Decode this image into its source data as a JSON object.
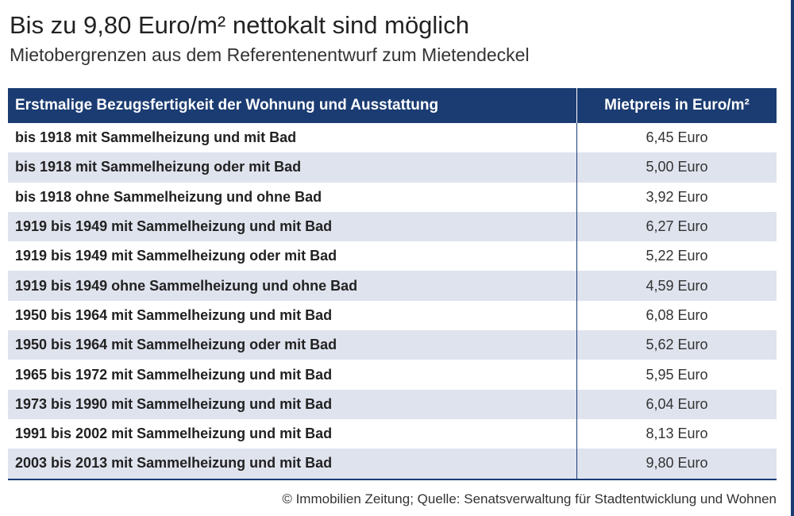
{
  "title": "Bis zu 9,80 Euro/m² nettokalt sind möglich",
  "subtitle": "Mietobergrenzen aus dem Referentenentwurf zum Mietendeckel",
  "source": "© Immobilien Zeitung; Quelle: Senatsverwaltung für Stadtentwicklung und Wohnen",
  "colors": {
    "header_bg": "#1b3c72",
    "row_alt_bg": "#dfe3ee"
  },
  "chart_data": {
    "type": "table",
    "title": "Bis zu 9,80 Euro/m² nettokalt sind möglich",
    "subtitle": "Mietobergrenzen aus dem Referentenentwurf zum Mietendeckel",
    "columns": [
      "Erstmalige Bezugsfertigkeit der Wohnung und Ausstattung",
      "Mietpreis in Euro/m²"
    ],
    "rows": [
      {
        "desc": "bis 1918 mit Sammelheizung und mit Bad",
        "price": "6,45 Euro"
      },
      {
        "desc": "bis 1918 mit Sammelheizung oder mit Bad",
        "price": "5,00 Euro"
      },
      {
        "desc": "bis 1918 ohne Sammelheizung und ohne Bad",
        "price": "3,92 Euro"
      },
      {
        "desc": "1919 bis 1949 mit Sammelheizung und mit Bad",
        "price": "6,27 Euro"
      },
      {
        "desc": "1919 bis 1949 mit Sammelheizung oder mit Bad",
        "price": "5,22 Euro"
      },
      {
        "desc": "1919 bis 1949 ohne Sammelheizung und ohne Bad",
        "price": "4,59 Euro"
      },
      {
        "desc": "1950 bis 1964 mit Sammelheizung und mit Bad",
        "price": "6,08 Euro"
      },
      {
        "desc": "1950 bis 1964 mit Sammelheizung oder mit Bad",
        "price": "5,62 Euro"
      },
      {
        "desc": "1965 bis 1972 mit Sammelheizung und mit Bad",
        "price": "5,95 Euro"
      },
      {
        "desc": "1973 bis 1990 mit Sammelheizung und mit Bad",
        "price": "6,04 Euro"
      },
      {
        "desc": "1991 bis 2002 mit Sammelheizung und mit Bad",
        "price": "8,13 Euro"
      },
      {
        "desc": "2003 bis 2013 mit Sammelheizung und mit Bad",
        "price": "9,80 Euro"
      }
    ],
    "values": [
      6.45,
      5.0,
      3.92,
      6.27,
      5.22,
      4.59,
      6.08,
      5.62,
      5.95,
      6.04,
      8.13,
      9.8
    ]
  }
}
